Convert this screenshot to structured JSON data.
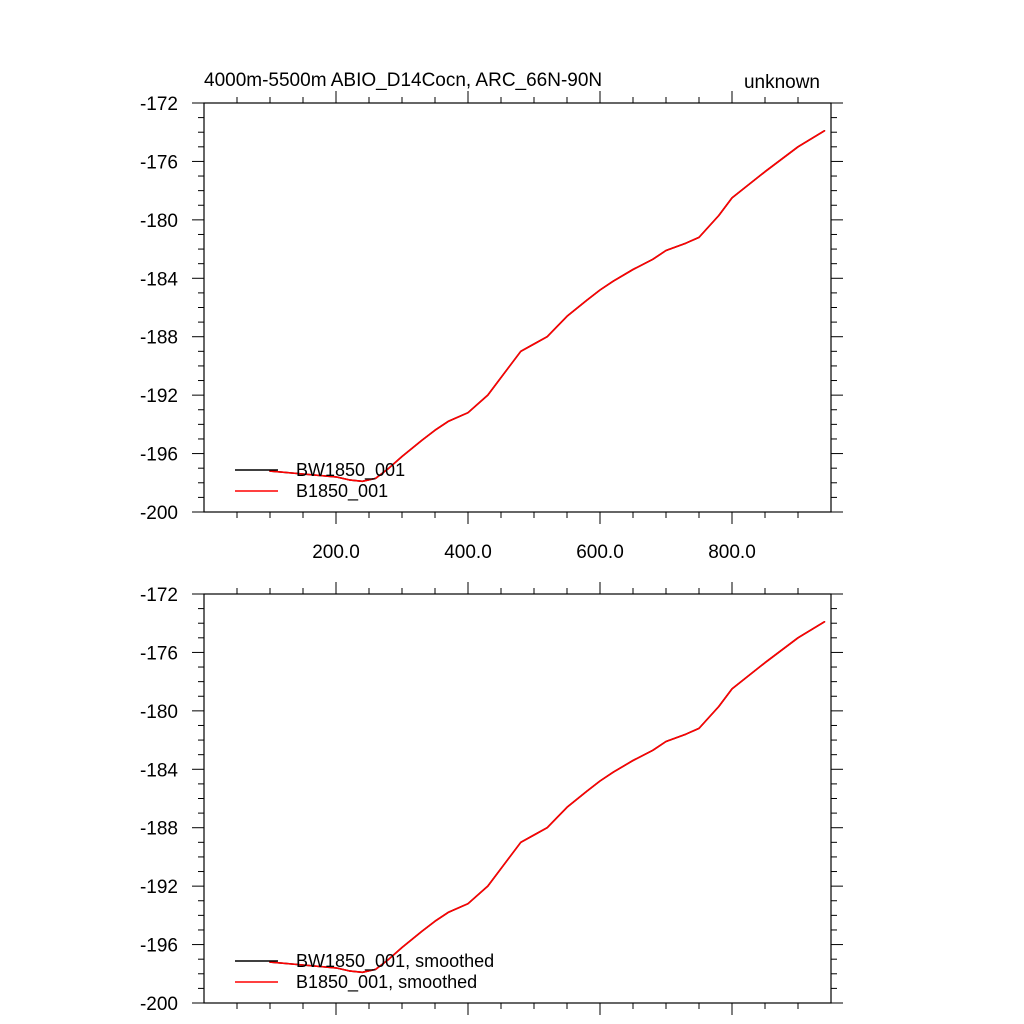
{
  "colors": {
    "black": "#000000",
    "red": "#ff0000",
    "background": "#ffffff"
  },
  "chart_data": [
    {
      "type": "line",
      "title": "4000m-5500m ABIO_D14Cocn, ARC_66N-90N",
      "subtitle_right": "unknown",
      "xlabel": "",
      "ylabel": "",
      "xlim": [
        0,
        950
      ],
      "ylim": [
        -200,
        -172
      ],
      "x_ticks": [
        "200.0",
        "400.0",
        "600.0",
        "800.0"
      ],
      "y_ticks": [
        "-172",
        "-176",
        "-180",
        "-184",
        "-188",
        "-192",
        "-196",
        "-200"
      ],
      "legend_position": "bottom-left",
      "grid": false,
      "series": [
        {
          "name": "BW1850_001",
          "color": "#000000",
          "x": [
            100,
            150,
            200,
            220,
            240,
            260,
            280,
            300,
            330,
            350,
            370,
            400,
            430,
            460,
            480,
            500,
            520,
            550,
            580,
            600,
            620,
            650,
            680,
            700,
            730,
            750,
            780,
            800,
            850,
            900,
            940
          ],
          "y": [
            -197.2,
            -197.4,
            -197.6,
            -197.8,
            -197.9,
            -197.7,
            -197.0,
            -196.2,
            -195.1,
            -194.4,
            -193.8,
            -193.2,
            -192.0,
            -190.2,
            -189.0,
            -188.5,
            -188.0,
            -186.6,
            -185.5,
            -184.8,
            -184.2,
            -183.4,
            -182.7,
            -182.1,
            -181.6,
            -181.2,
            -179.7,
            -178.5,
            -176.7,
            -175.0,
            -173.9
          ]
        },
        {
          "name": "B1850_001",
          "color": "#ff0000",
          "x": [
            100,
            150,
            200,
            220,
            240,
            260,
            280,
            300,
            330,
            350,
            370,
            400,
            430,
            460,
            480,
            500,
            520,
            550,
            580,
            600,
            620,
            650,
            680,
            700,
            730,
            750,
            780,
            800,
            850,
            900,
            940
          ],
          "y": [
            -197.2,
            -197.4,
            -197.6,
            -197.8,
            -197.9,
            -197.7,
            -197.0,
            -196.2,
            -195.1,
            -194.4,
            -193.8,
            -193.2,
            -192.0,
            -190.2,
            -189.0,
            -188.5,
            -188.0,
            -186.6,
            -185.5,
            -184.8,
            -184.2,
            -183.4,
            -182.7,
            -182.1,
            -181.6,
            -181.2,
            -179.7,
            -178.5,
            -176.7,
            -175.0,
            -173.9
          ]
        }
      ]
    },
    {
      "type": "line",
      "title": "",
      "xlabel": "",
      "ylabel": "",
      "xlim": [
        0,
        950
      ],
      "ylim": [
        -200,
        -172
      ],
      "x_ticks": [],
      "y_ticks": [
        "-172",
        "-176",
        "-180",
        "-184",
        "-188",
        "-192",
        "-196",
        "-200"
      ],
      "legend_position": "bottom-left",
      "grid": false,
      "series": [
        {
          "name": "BW1850_001, smoothed",
          "color": "#000000",
          "x": [
            100,
            150,
            200,
            220,
            240,
            260,
            280,
            300,
            330,
            350,
            370,
            400,
            430,
            460,
            480,
            500,
            520,
            550,
            580,
            600,
            620,
            650,
            680,
            700,
            730,
            750,
            780,
            800,
            850,
            900,
            940
          ],
          "y": [
            -197.2,
            -197.4,
            -197.6,
            -197.8,
            -197.9,
            -197.7,
            -197.0,
            -196.2,
            -195.1,
            -194.4,
            -193.8,
            -193.2,
            -192.0,
            -190.2,
            -189.0,
            -188.5,
            -188.0,
            -186.6,
            -185.5,
            -184.8,
            -184.2,
            -183.4,
            -182.7,
            -182.1,
            -181.6,
            -181.2,
            -179.7,
            -178.5,
            -176.7,
            -175.0,
            -173.9
          ]
        },
        {
          "name": "B1850_001, smoothed",
          "color": "#ff0000",
          "x": [
            100,
            150,
            200,
            220,
            240,
            260,
            280,
            300,
            330,
            350,
            370,
            400,
            430,
            460,
            480,
            500,
            520,
            550,
            580,
            600,
            620,
            650,
            680,
            700,
            730,
            750,
            780,
            800,
            850,
            900,
            940
          ],
          "y": [
            -197.2,
            -197.4,
            -197.6,
            -197.8,
            -197.9,
            -197.7,
            -197.0,
            -196.2,
            -195.1,
            -194.4,
            -193.8,
            -193.2,
            -192.0,
            -190.2,
            -189.0,
            -188.5,
            -188.0,
            -186.6,
            -185.5,
            -184.8,
            -184.2,
            -183.4,
            -182.7,
            -182.1,
            -181.6,
            -181.2,
            -179.7,
            -178.5,
            -176.7,
            -175.0,
            -173.9
          ]
        }
      ]
    }
  ]
}
